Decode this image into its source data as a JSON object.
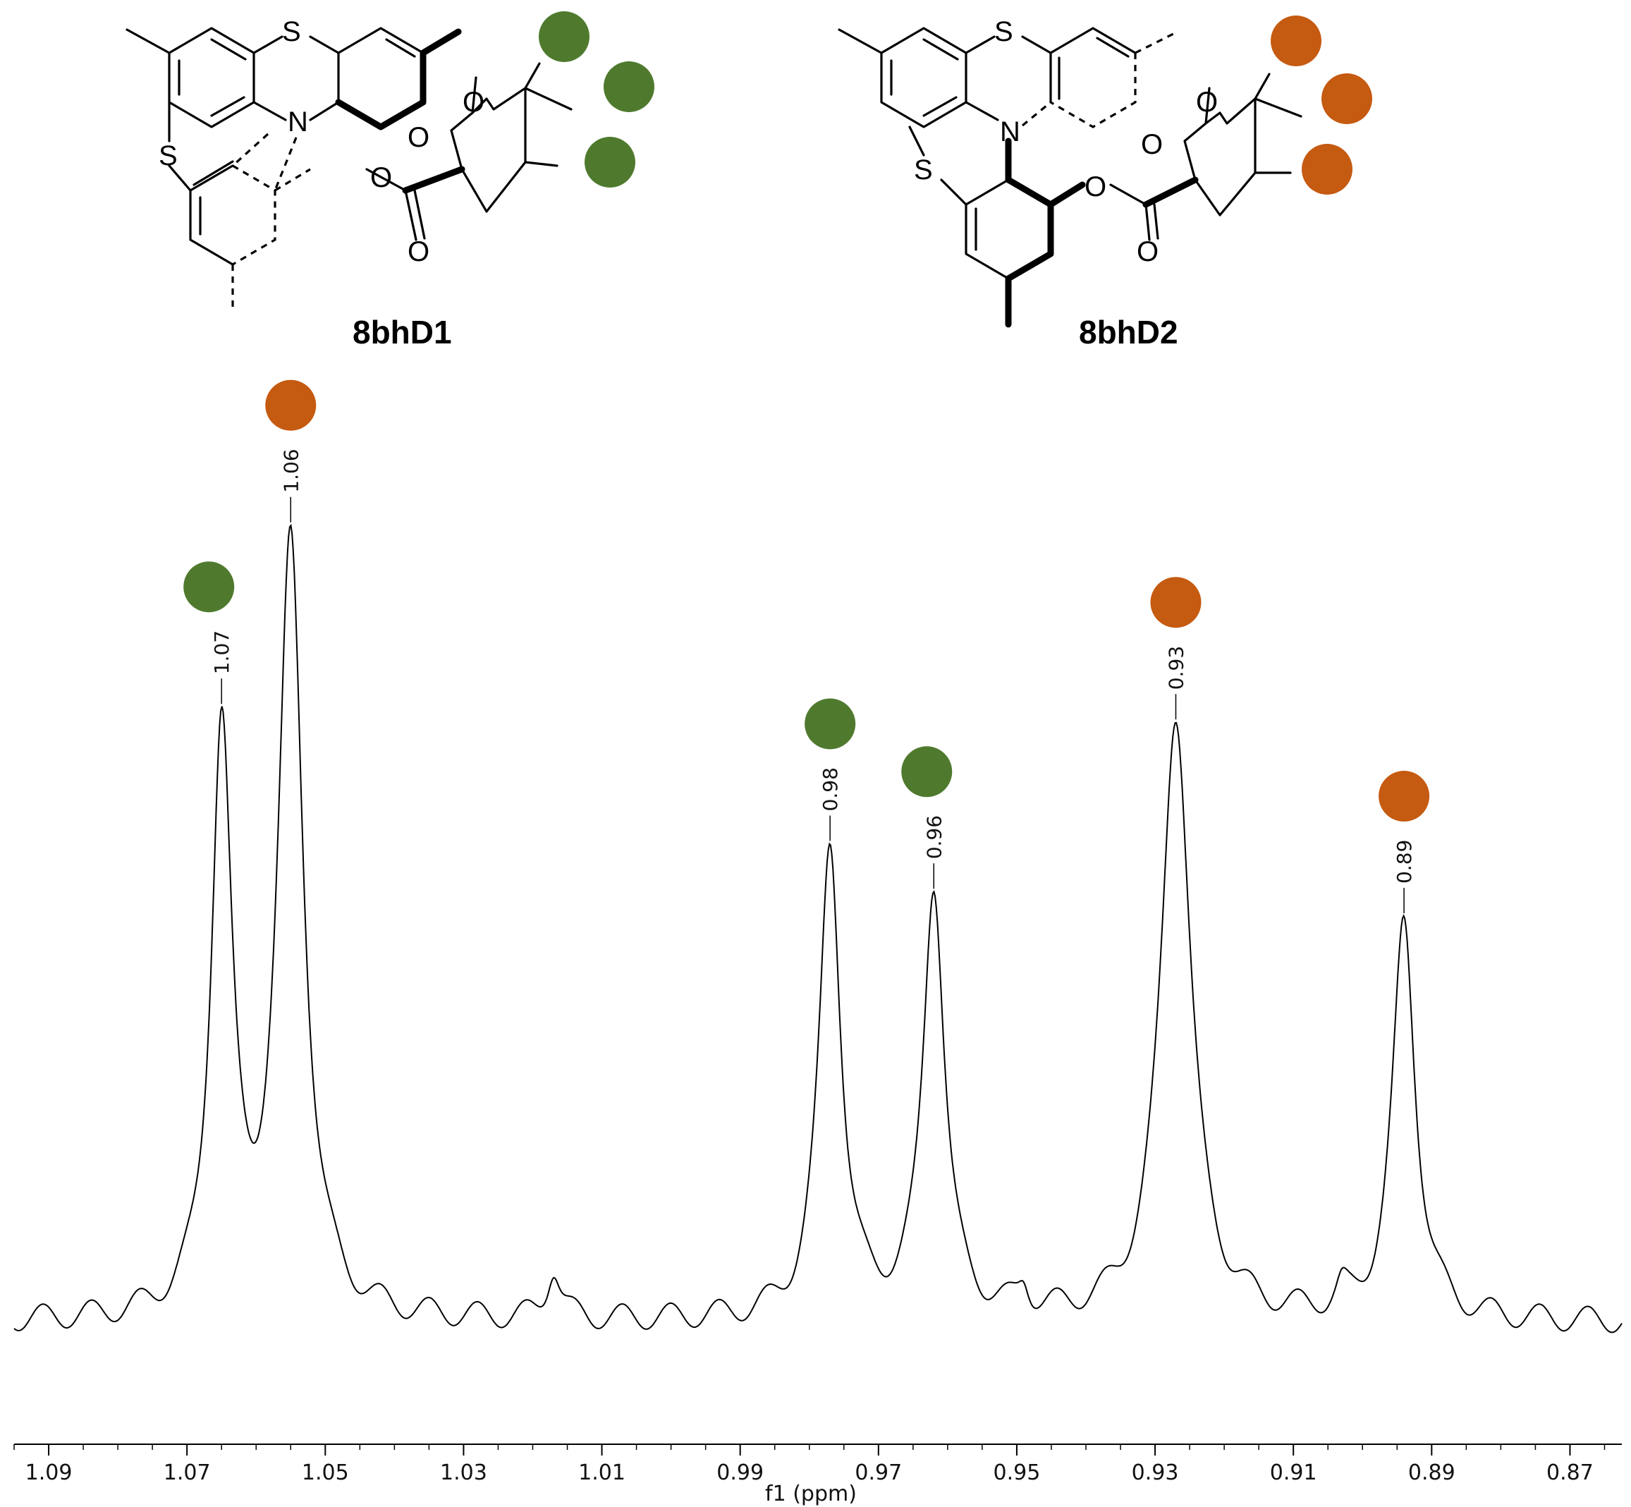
{
  "colors": {
    "green": "#4f7a2e",
    "orange": "#c55a11",
    "line": "#000000"
  },
  "molecules": {
    "d1": {
      "label": "8bhD1",
      "marker_color": "green"
    },
    "d2": {
      "label": "8bhD2",
      "marker_color": "orange"
    },
    "atoms": {
      "sulfur": "S",
      "nitrogen": "N",
      "oxygen": "O"
    }
  },
  "chart_data": {
    "type": "line",
    "title": "",
    "xlabel": "f1 (ppm)",
    "ylabel": "",
    "xlim": [
      1.095,
      0.8625
    ],
    "x_reversed": true,
    "ylim": [
      0,
      1
    ],
    "grid": false,
    "x_ticks": [
      1.09,
      1.07,
      1.05,
      1.03,
      1.01,
      0.99,
      0.97,
      0.95,
      0.93,
      0.91,
      0.89,
      0.87
    ],
    "x_tick_labels": [
      "1.09",
      "1.07",
      "1.05",
      "1.03",
      "1.01",
      "0.99",
      "0.97",
      "0.95",
      "0.93",
      "0.91",
      "0.89",
      "0.87"
    ],
    "peaks": [
      {
        "ppm": 1.065,
        "label": "1.07",
        "height": 0.69,
        "width": 0.0018,
        "marker": "green"
      },
      {
        "ppm": 1.055,
        "label": "1.06",
        "height": 0.91,
        "width": 0.0022,
        "marker": "orange"
      },
      {
        "ppm": 0.977,
        "label": "0.98",
        "height": 0.56,
        "width": 0.0019,
        "marker": "green"
      },
      {
        "ppm": 0.962,
        "label": "0.96",
        "height": 0.51,
        "width": 0.0019,
        "marker": "green"
      },
      {
        "ppm": 0.927,
        "label": "0.93",
        "height": 0.72,
        "width": 0.0026,
        "marker": "orange"
      },
      {
        "ppm": 0.894,
        "label": "0.89",
        "height": 0.47,
        "width": 0.002,
        "marker": "orange"
      }
    ],
    "minor_peaks": [
      {
        "ppm": 1.017,
        "height": 0.06,
        "width": 0.0012
      },
      {
        "ppm": 0.949,
        "height": 0.03,
        "width": 0.001
      },
      {
        "ppm": 0.903,
        "height": 0.02,
        "width": 0.001
      }
    ]
  }
}
